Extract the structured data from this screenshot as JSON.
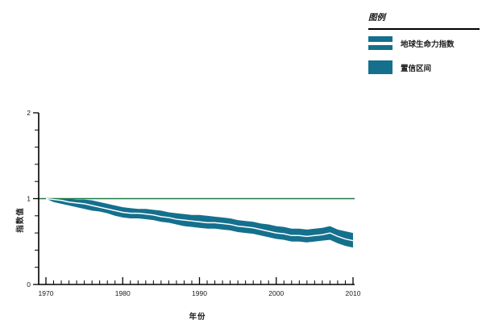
{
  "page": {
    "background": "#ffffff"
  },
  "legend": {
    "title": "图例",
    "items": [
      {
        "label": "地球生命力指数",
        "swatch": "index-line"
      },
      {
        "label": "置信区间",
        "swatch": "confidence-band"
      }
    ]
  },
  "chart_data": {
    "type": "area",
    "title": "",
    "xlabel": "年份",
    "ylabel": "指数值",
    "xlim": [
      1969,
      2010.5
    ],
    "ylim": [
      0,
      2
    ],
    "grid": false,
    "legend_position": "top-right",
    "xticks_major": [
      1970,
      1980,
      1990,
      2000,
      2010
    ],
    "yticks_major": [
      0,
      1,
      2
    ],
    "ytick_minor_step": 0.2,
    "reference_line": {
      "y": 1,
      "color": "#1b7a42"
    },
    "colors": {
      "band": "#15708d",
      "index_line": "#ffffff",
      "axis": "#000000",
      "tick_text": "#1a1a1a"
    },
    "x": [
      1970,
      1971,
      1972,
      1973,
      1974,
      1975,
      1976,
      1977,
      1978,
      1979,
      1980,
      1981,
      1982,
      1983,
      1984,
      1985,
      1986,
      1987,
      1988,
      1989,
      1990,
      1991,
      1992,
      1993,
      1994,
      1995,
      1996,
      1997,
      1998,
      1999,
      2000,
      2001,
      2002,
      2003,
      2004,
      2005,
      2006,
      2007,
      2008,
      2009,
      2010
    ],
    "series": [
      {
        "name": "地球生命力指数",
        "values": [
          1.0,
          0.99,
          0.98,
          0.96,
          0.95,
          0.94,
          0.92,
          0.9,
          0.88,
          0.86,
          0.84,
          0.83,
          0.83,
          0.82,
          0.81,
          0.79,
          0.78,
          0.76,
          0.75,
          0.74,
          0.73,
          0.72,
          0.72,
          0.71,
          0.7,
          0.68,
          0.67,
          0.66,
          0.64,
          0.62,
          0.6,
          0.59,
          0.57,
          0.57,
          0.56,
          0.57,
          0.58,
          0.6,
          0.56,
          0.53,
          0.51
        ]
      },
      {
        "name": "置信区间下限",
        "values": [
          1.0,
          0.96,
          0.94,
          0.92,
          0.9,
          0.88,
          0.86,
          0.85,
          0.83,
          0.8,
          0.78,
          0.77,
          0.77,
          0.76,
          0.75,
          0.73,
          0.72,
          0.7,
          0.68,
          0.67,
          0.66,
          0.65,
          0.65,
          0.64,
          0.63,
          0.61,
          0.6,
          0.59,
          0.57,
          0.55,
          0.53,
          0.52,
          0.5,
          0.5,
          0.49,
          0.5,
          0.51,
          0.52,
          0.48,
          0.45,
          0.43
        ]
      },
      {
        "name": "置信区间上限",
        "values": [
          1.0,
          1.0,
          1.0,
          1.0,
          0.99,
          0.99,
          0.98,
          0.96,
          0.94,
          0.92,
          0.9,
          0.89,
          0.88,
          0.88,
          0.87,
          0.86,
          0.84,
          0.83,
          0.82,
          0.81,
          0.81,
          0.8,
          0.79,
          0.78,
          0.77,
          0.75,
          0.74,
          0.73,
          0.71,
          0.7,
          0.68,
          0.67,
          0.65,
          0.65,
          0.64,
          0.65,
          0.66,
          0.68,
          0.64,
          0.62,
          0.6
        ]
      }
    ]
  }
}
